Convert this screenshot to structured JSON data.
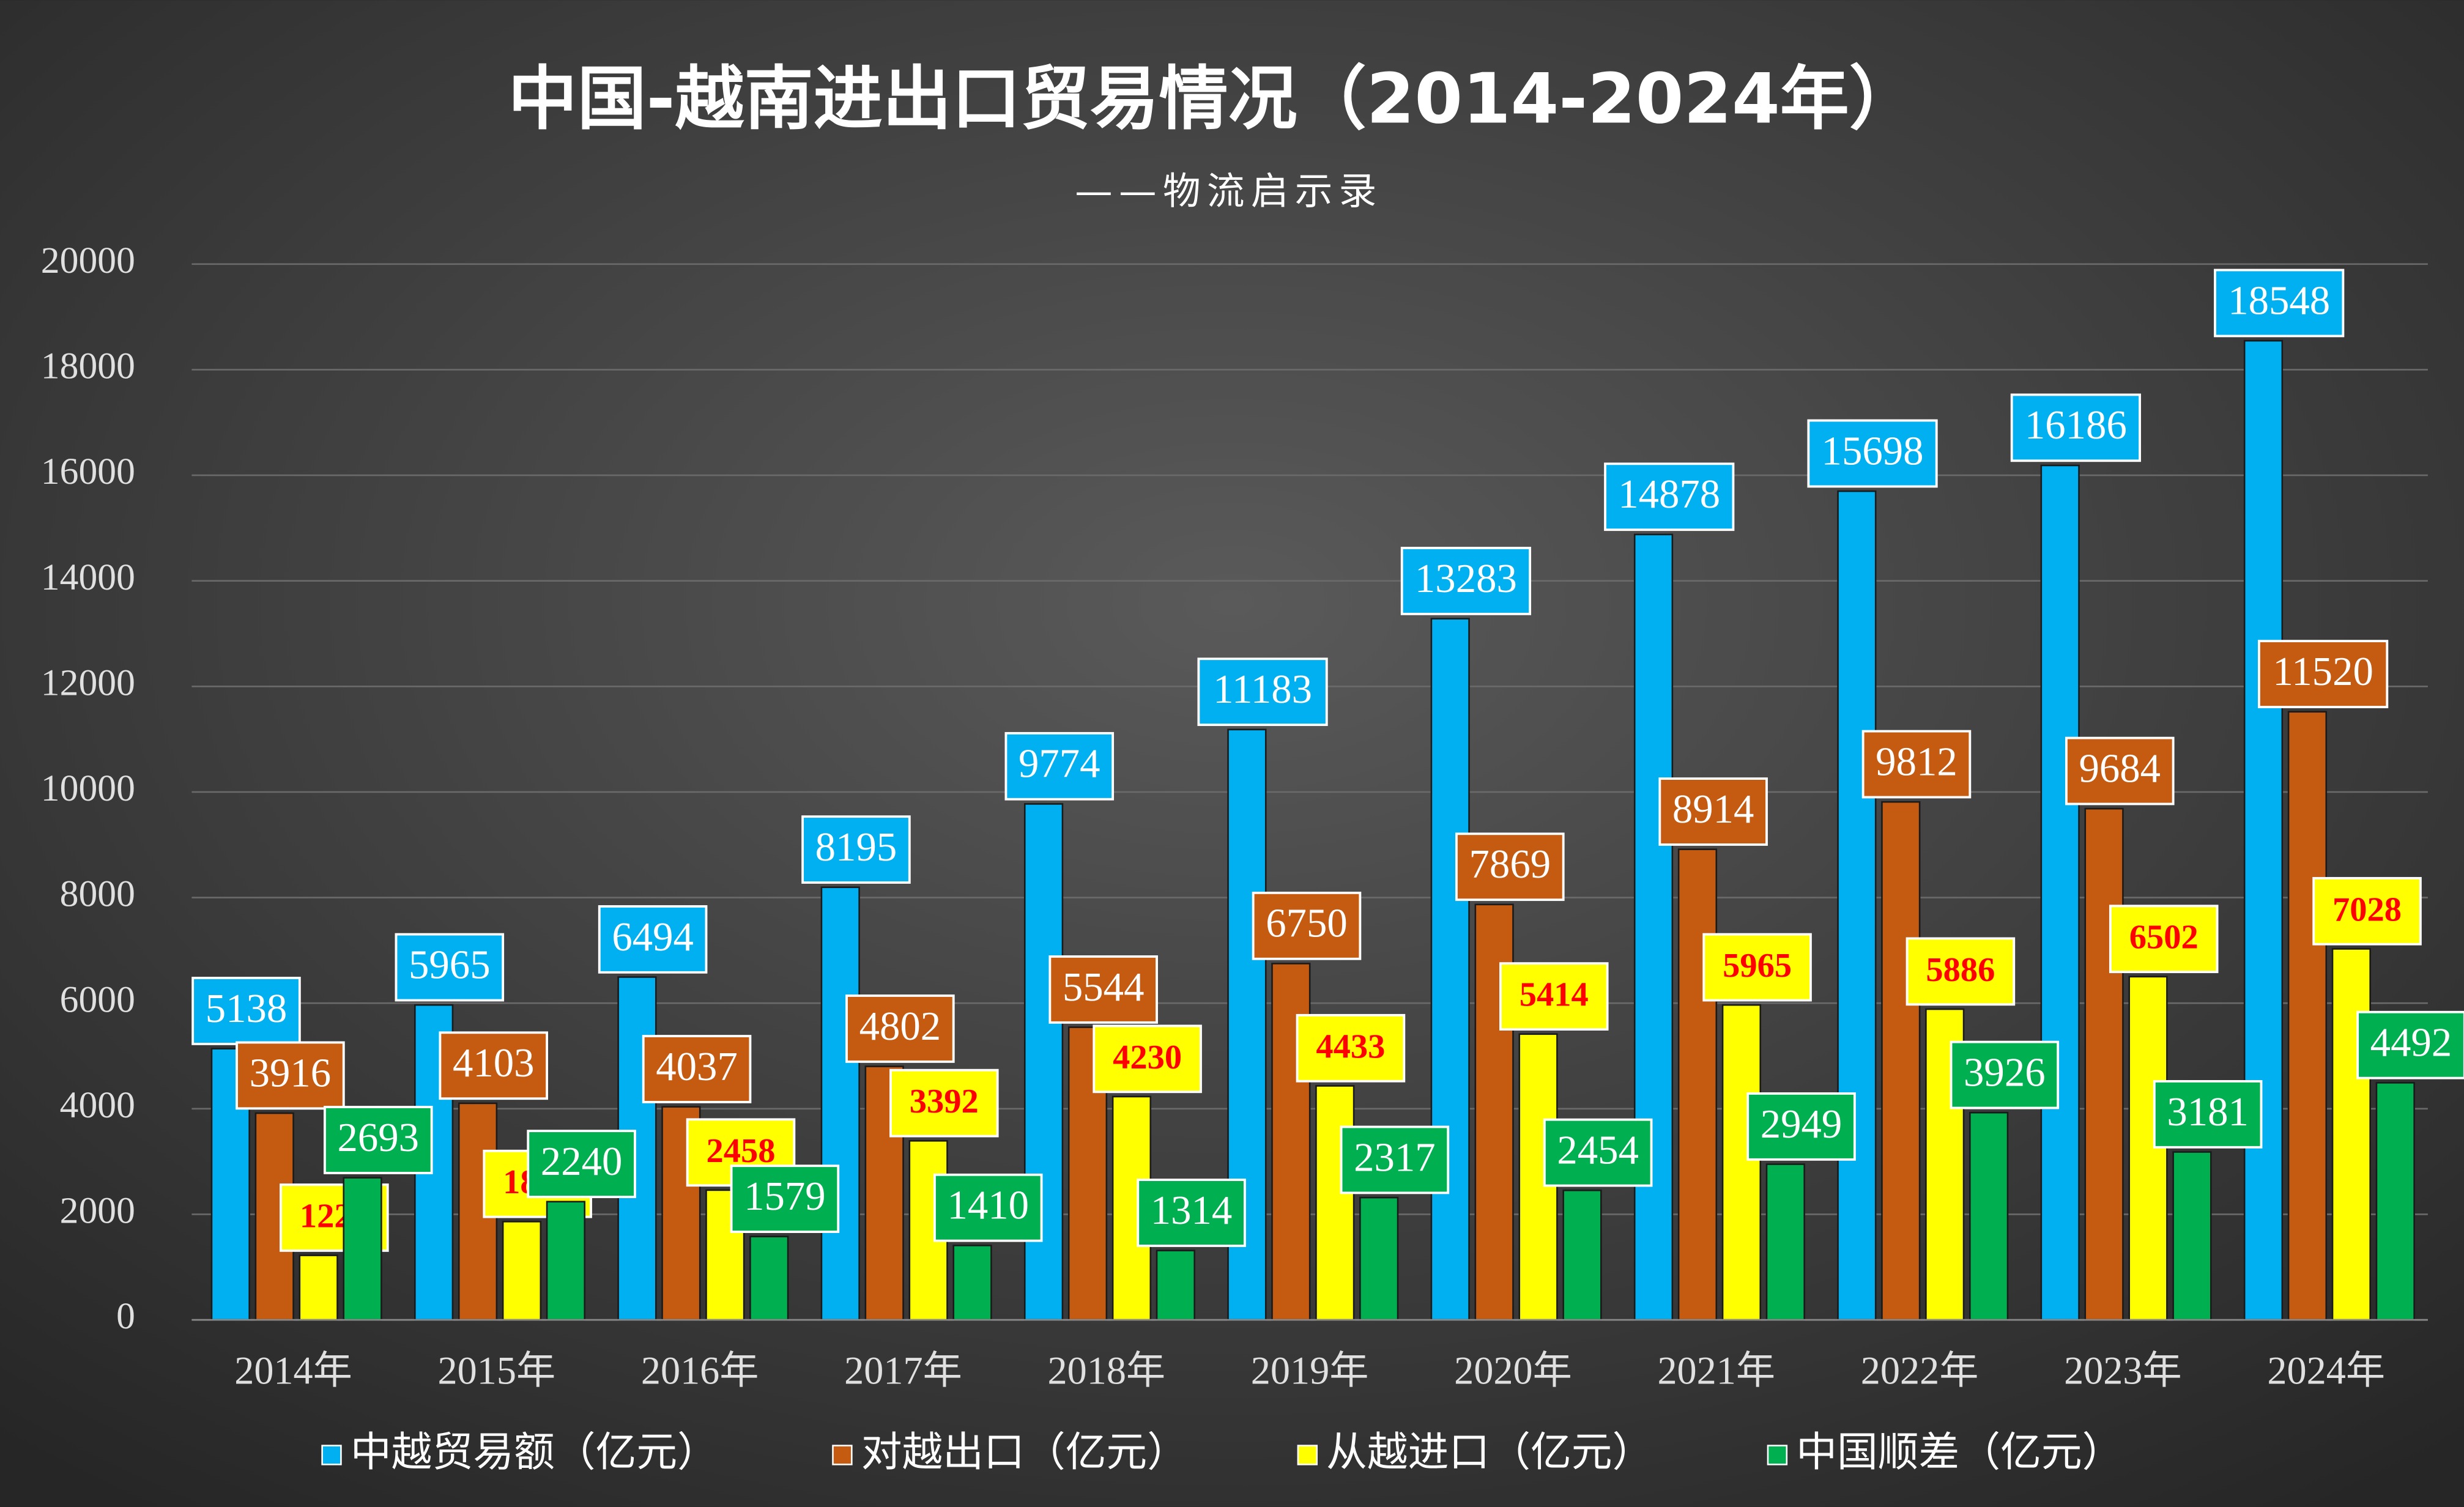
{
  "chart_data": {
    "type": "bar",
    "title": "中国-越南进出口贸易情况（2014-2024年）",
    "subtitle": "——物流启示录",
    "categories": [
      "2014年",
      "2015年",
      "2016年",
      "2017年",
      "2018年",
      "2019年",
      "2020年",
      "2021年",
      "2022年",
      "2023年",
      "2024年"
    ],
    "series": [
      {
        "name": "中越贸易额（亿元）",
        "color": "#00b0f0",
        "label_text_color": "#ffffff",
        "values": [
          5138,
          5965,
          6494,
          8195,
          9774,
          11183,
          13283,
          14878,
          15698,
          16186,
          18548
        ]
      },
      {
        "name": "对越出口（亿元）",
        "color": "#c55a11",
        "label_text_color": "#ffffff",
        "values": [
          3916,
          4103,
          4037,
          4802,
          5544,
          6750,
          7869,
          8914,
          9812,
          9684,
          11520
        ]
      },
      {
        "name": "从越进口（亿元）",
        "color": "#ffff00",
        "label_text_color": "#ff0000",
        "values": [
          1222,
          1862,
          2458,
          3392,
          4230,
          4433,
          5414,
          5965,
          5886,
          6502,
          7028
        ]
      },
      {
        "name": "中国顺差（亿元）",
        "color": "#00b050",
        "label_text_color": "#ffffff",
        "values": [
          2693,
          2240,
          1579,
          1410,
          1314,
          2317,
          2454,
          2949,
          3926,
          3181,
          4492
        ]
      }
    ],
    "ylim": [
      0,
      20000
    ],
    "yticks": [
      0,
      2000,
      4000,
      6000,
      8000,
      10000,
      12000,
      14000,
      16000,
      18000,
      20000
    ],
    "grid": true,
    "legend": "bottom"
  }
}
